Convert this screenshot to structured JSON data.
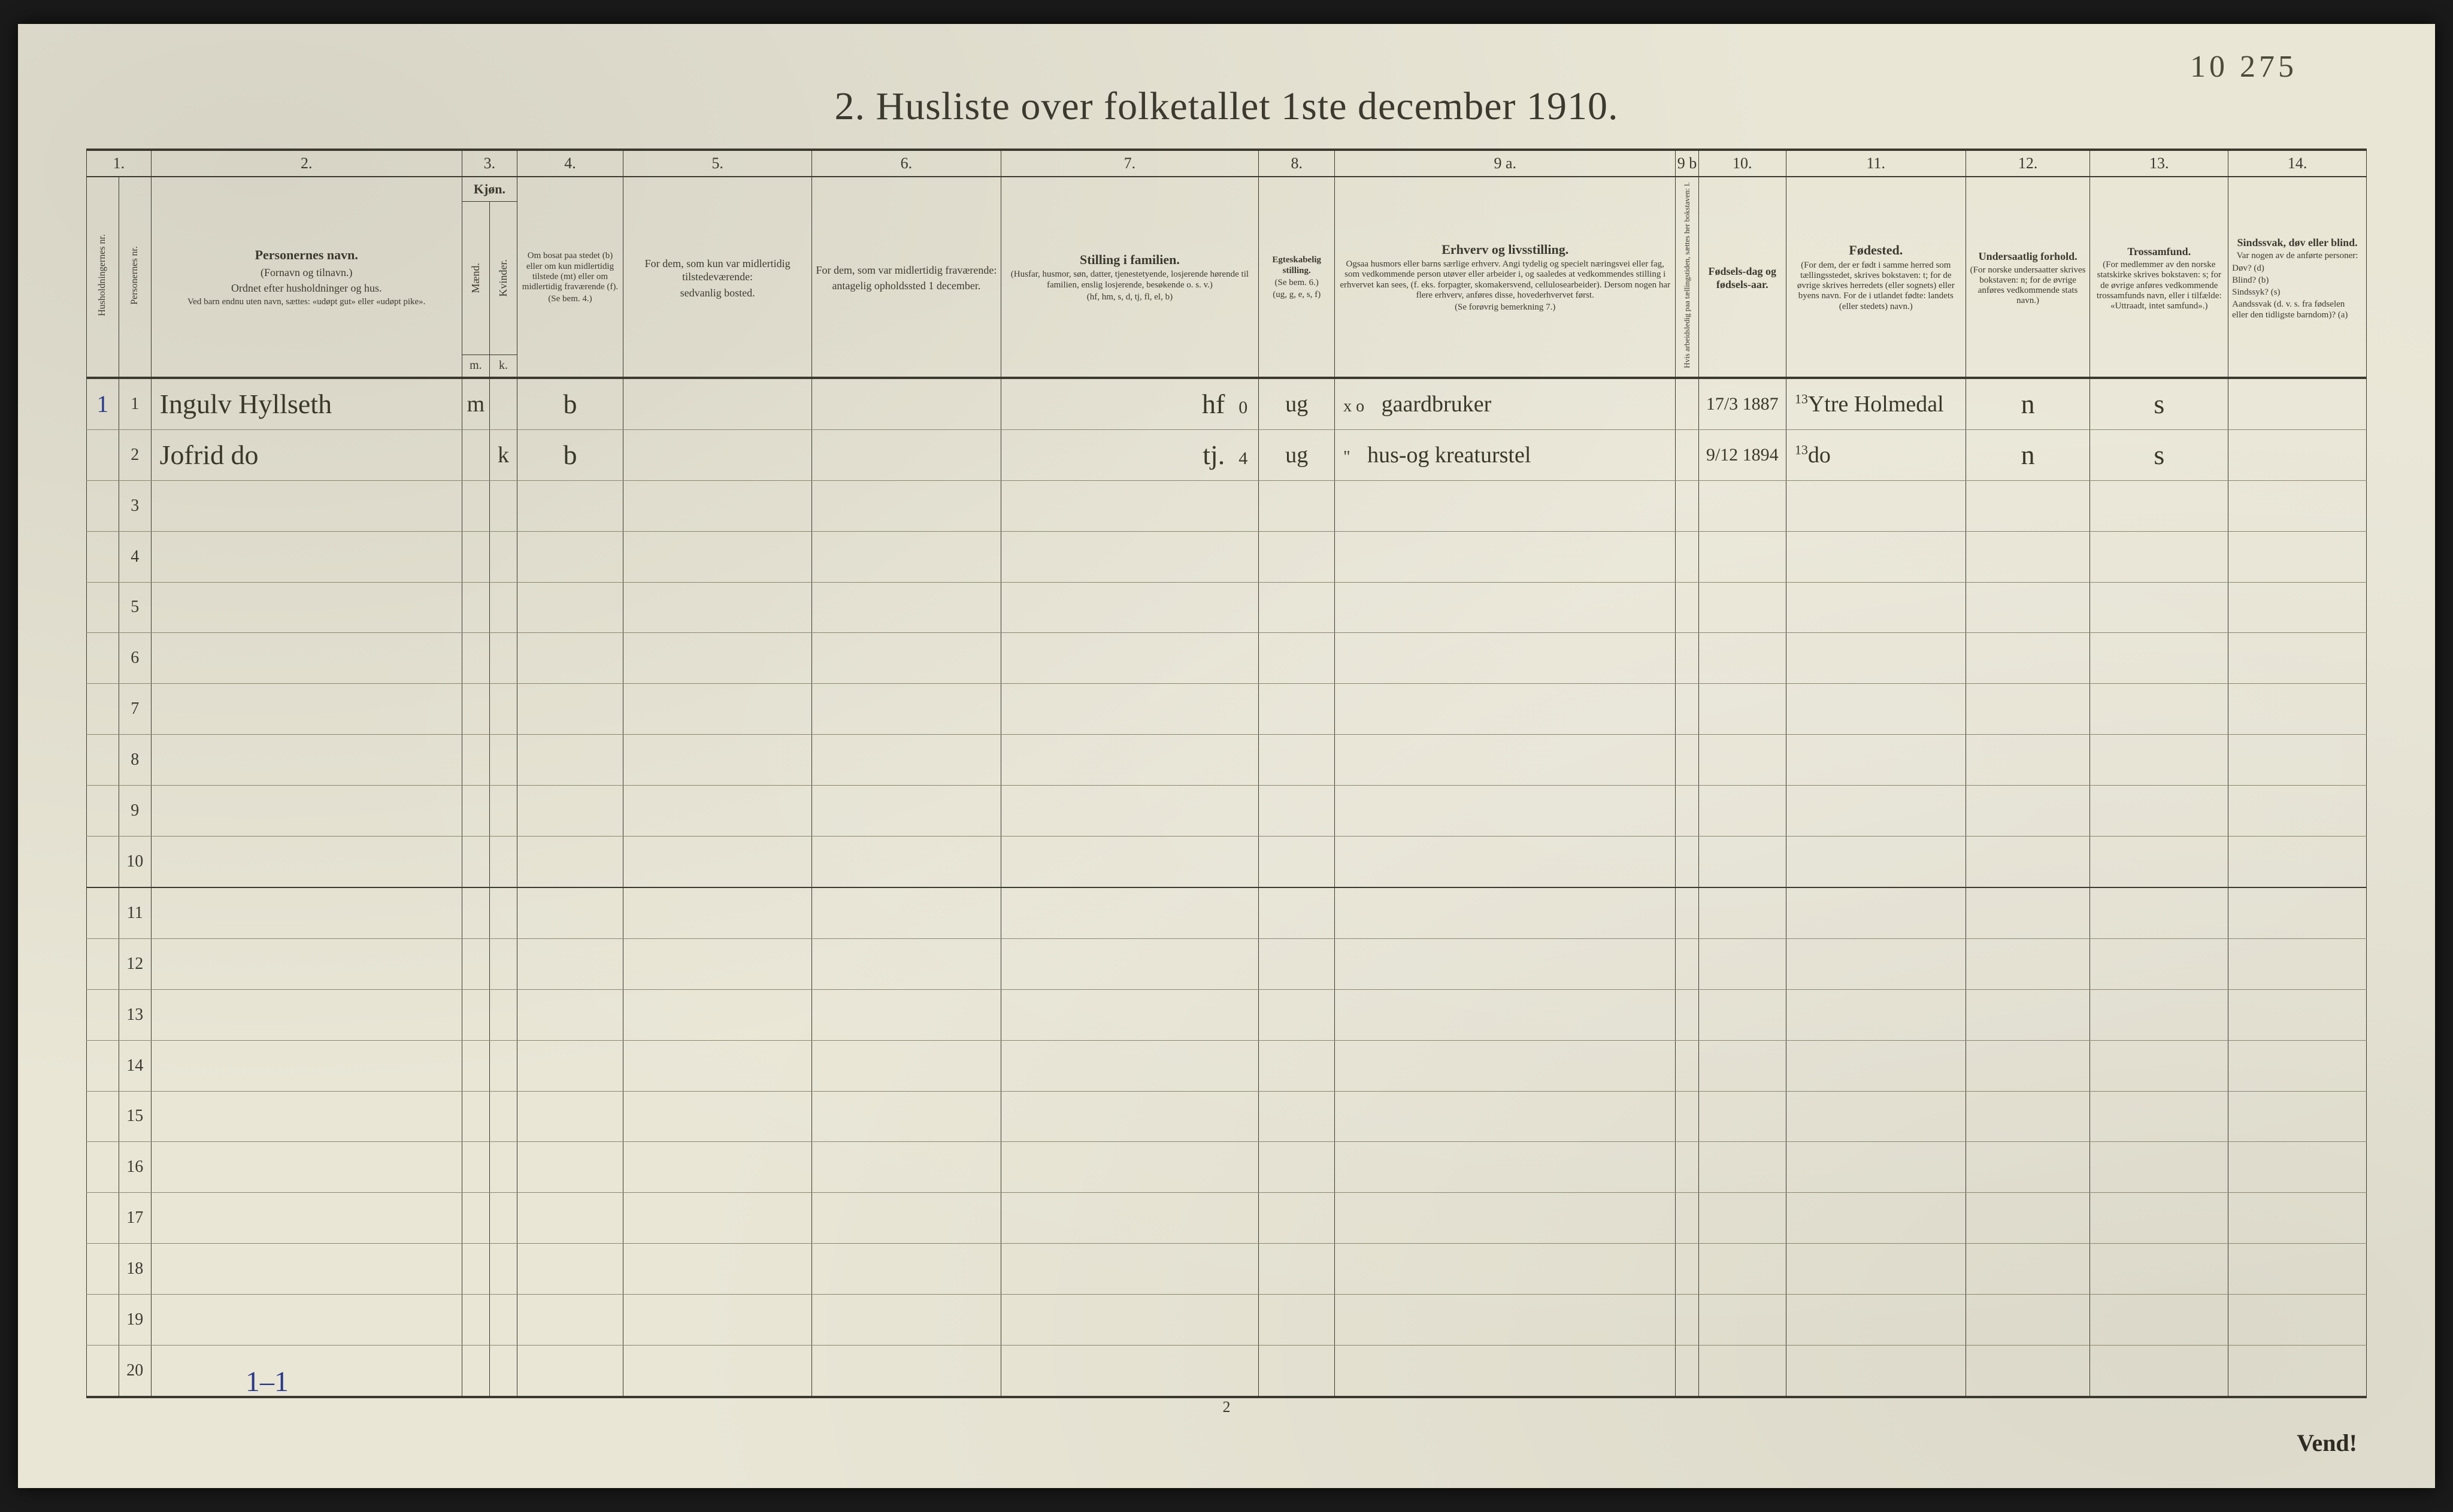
{
  "page": {
    "handwritten_corner": "10 275",
    "title": "2.  Husliste over folketallet 1ste december 1910.",
    "footer_page_number": "2",
    "turn_over": "Vend!",
    "tally": "1–1"
  },
  "columns": {
    "numbers": [
      "1.",
      "",
      "2.",
      "3.",
      "",
      "4.",
      "5.",
      "6.",
      "7.",
      "8.",
      "9 a.",
      "9 b",
      "10.",
      "11.",
      "12.",
      "13.",
      "14."
    ],
    "col1_rot": "Husholdningernes nr.",
    "col1b_rot": "Personernes nr.",
    "col2": {
      "h": "Personernes navn.",
      "s1": "(Fornavn og tilnavn.)",
      "s2": "Ordnet efter husholdninger og hus.",
      "s3": "Ved barn endnu uten navn, sættes: «udøpt gut» eller «udøpt pike»."
    },
    "col3": {
      "h": "Kjøn.",
      "sub1": "Mænd.",
      "sub2": "Kvinder.",
      "bot1": "m.",
      "bot2": "k."
    },
    "col4": {
      "h": "Om bosat paa stedet (b) eller om kun midlertidig tilstede (mt) eller om midlertidig fraværende (f).",
      "s": "(Se bem. 4.)"
    },
    "col5": {
      "h": "For dem, som kun var midlertidig tilstedeværende:",
      "s": "sedvanlig bosted."
    },
    "col6": {
      "h": "For dem, som var midlertidig fraværende:",
      "s": "antagelig opholdssted 1 december."
    },
    "col7": {
      "h": "Stilling i familien.",
      "s": "(Husfar, husmor, søn, datter, tjenestetyende, losjerende hørende til familien, enslig losjerende, besøkende o. s. v.)",
      "s2": "(hf, hm, s, d, tj, fl, el, b)"
    },
    "col8": {
      "h": "Egteskabelig stilling.",
      "s": "(Se bem. 6.)",
      "s2": "(ug, g, e, s, f)"
    },
    "col9a": {
      "h": "Erhverv og livsstilling.",
      "s": "Ogsaa husmors eller barns særlige erhverv. Angi tydelig og specielt næringsvei eller fag, som vedkommende person utøver eller arbeider i, og saaledes at vedkommendes stilling i erhvervet kan sees, (f. eks. forpagter, skomakersvend, cellulosearbeider). Dersom nogen har flere erhverv, anføres disse, hovederhvervet først.",
      "s2": "(Se forøvrig bemerkning 7.)"
    },
    "col9b_rot": "Hvis arbeidsledig paa tællingstiden, sættes her bokstaven: l.",
    "col10": {
      "h": "Fødsels-dag og fødsels-aar."
    },
    "col11": {
      "h": "Fødested.",
      "s": "(For dem, der er født i samme herred som tællingsstedet, skrives bokstaven: t; for de øvrige skrives herredets (eller sognets) eller byens navn. For de i utlandet fødte: landets (eller stedets) navn.)"
    },
    "col12": {
      "h": "Undersaatlig forhold.",
      "s": "(For norske undersaatter skrives bokstaven: n; for de øvrige anføres vedkommende stats navn.)"
    },
    "col13": {
      "h": "Trossamfund.",
      "s": "(For medlemmer av den norske statskirke skrives bokstaven: s; for de øvrige anføres vedkommende trossamfunds navn, eller i tilfælde: «Uttraadt, intet samfund».)"
    },
    "col14": {
      "h": "Sindssvak, døv eller blind.",
      "s": "Var nogen av de anførte personer:",
      "lines": [
        "Døv?    (d)",
        "Blind?   (b)",
        "Sindssyk? (s)",
        "Aandssvak (d. v. s. fra fødselen eller den tidligste barndom)? (a)"
      ]
    }
  },
  "rows": [
    {
      "hh": "1",
      "nr": "1",
      "name": "Ingulv Hyllseth",
      "sex_m": "m",
      "sex_k": "",
      "residence": "b",
      "col5": "",
      "col6": "",
      "famstat": "hf",
      "famstat_note": "0",
      "marital": "ug",
      "occupation_pre": "x o",
      "occupation": "gaardbruker",
      "birth": "17/3 1887",
      "birthplace_sup": "13",
      "birthplace": "Ytre Holmedal",
      "nation": "n",
      "faith": "s",
      "col14": ""
    },
    {
      "hh": "",
      "nr": "2",
      "name": "Jofrid      do",
      "sex_m": "",
      "sex_k": "k",
      "residence": "b",
      "col5": "",
      "col6": "",
      "famstat": "tj.",
      "famstat_note": "4",
      "marital": "ug",
      "occupation_pre": "\"",
      "occupation": "hus-og kreaturstel",
      "birth": "9/12 1894",
      "birthplace_sup": "13",
      "birthplace": "do",
      "nation": "n",
      "faith": "s",
      "col14": ""
    }
  ],
  "blank_row_count": 18
}
